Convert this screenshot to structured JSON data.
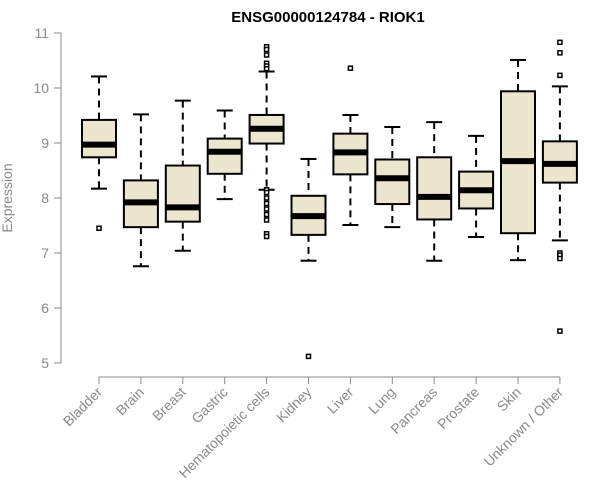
{
  "chart_data": {
    "type": "box",
    "title": "ENSG00000124784 - RIOK1",
    "xlabel": "",
    "ylabel": "Expression",
    "ylim": [
      5,
      11
    ],
    "yticks": [
      5,
      6,
      7,
      8,
      9,
      10,
      11
    ],
    "grid": false,
    "box_fill": "#ede6cf",
    "stroke_color": "#000000",
    "text_color": "#8a8a8a",
    "categories": [
      "Bladder",
      "Brain",
      "Breast",
      "Gastric",
      "Hematopoietic cells",
      "Kidney",
      "Liver",
      "Lung",
      "Pancreas",
      "Prostate",
      "Skin",
      "Unknown / Other"
    ],
    "boxes": [
      {
        "category": "Bladder",
        "whisker_low": 8.17,
        "q1": 8.74,
        "median": 8.97,
        "q3": 9.42,
        "whisker_high": 10.21,
        "outliers": [
          7.45
        ]
      },
      {
        "category": "Brain",
        "whisker_low": 6.76,
        "q1": 7.47,
        "median": 7.92,
        "q3": 8.32,
        "whisker_high": 9.52,
        "outliers": []
      },
      {
        "category": "Breast",
        "whisker_low": 7.04,
        "q1": 7.57,
        "median": 7.83,
        "q3": 8.59,
        "whisker_high": 9.77,
        "outliers": []
      },
      {
        "category": "Gastric",
        "whisker_low": 7.98,
        "q1": 8.44,
        "median": 8.84,
        "q3": 9.08,
        "whisker_high": 9.59,
        "outliers": []
      },
      {
        "category": "Hematopoietic cells",
        "whisker_low": 8.15,
        "q1": 8.99,
        "median": 9.26,
        "q3": 9.51,
        "whisker_high": 10.3,
        "outliers": [
          10.75,
          10.7,
          10.6,
          10.45,
          10.4,
          10.35,
          8.15,
          8.1,
          8.0,
          7.9,
          7.8,
          7.7,
          7.6,
          7.35,
          7.3
        ]
      },
      {
        "category": "Kidney",
        "whisker_low": 6.86,
        "q1": 7.33,
        "median": 7.67,
        "q3": 8.04,
        "whisker_high": 8.71,
        "outliers": [
          5.12
        ]
      },
      {
        "category": "Liver",
        "whisker_low": 7.51,
        "q1": 8.43,
        "median": 8.83,
        "q3": 9.17,
        "whisker_high": 9.51,
        "outliers": [
          10.36
        ]
      },
      {
        "category": "Lung",
        "whisker_low": 7.47,
        "q1": 7.89,
        "median": 8.36,
        "q3": 8.7,
        "whisker_high": 9.29,
        "outliers": []
      },
      {
        "category": "Pancreas",
        "whisker_low": 6.86,
        "q1": 7.61,
        "median": 8.02,
        "q3": 8.74,
        "whisker_high": 9.38,
        "outliers": []
      },
      {
        "category": "Prostate",
        "whisker_low": 7.29,
        "q1": 7.81,
        "median": 8.14,
        "q3": 8.48,
        "whisker_high": 9.13,
        "outliers": []
      },
      {
        "category": "Skin",
        "whisker_low": 6.87,
        "q1": 7.36,
        "median": 8.67,
        "q3": 9.94,
        "whisker_high": 10.51,
        "outliers": []
      },
      {
        "category": "Unknown / Other",
        "whisker_low": 7.23,
        "q1": 8.28,
        "median": 8.62,
        "q3": 9.03,
        "whisker_high": 10.03,
        "outliers": [
          10.83,
          10.64,
          10.23,
          7.0,
          6.96,
          6.9,
          5.58
        ]
      }
    ]
  }
}
